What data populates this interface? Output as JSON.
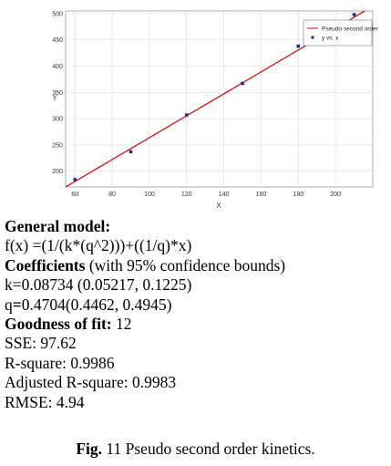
{
  "chart_data": {
    "type": "scatter",
    "title": "",
    "xlabel": "X",
    "ylabel": "Y",
    "xlim": [
      55,
      220
    ],
    "ylim": [
      170,
      505
    ],
    "xticks": [
      60,
      80,
      100,
      120,
      140,
      160,
      180,
      200
    ],
    "yticks": [
      200,
      250,
      300,
      350,
      400,
      450,
      500
    ],
    "grid": true,
    "legend_position": "top-right",
    "series": [
      {
        "name": "y vs. x",
        "kind": "points",
        "color": "#2b2b8a",
        "points": [
          {
            "x": 60,
            "y": 184
          },
          {
            "x": 90,
            "y": 237
          },
          {
            "x": 120,
            "y": 307
          },
          {
            "x": 150,
            "y": 367
          },
          {
            "x": 180,
            "y": 438
          },
          {
            "x": 210,
            "y": 498
          }
        ]
      },
      {
        "name": "Pseudo second order",
        "kind": "line",
        "color": "#e00000",
        "points": [
          {
            "x": 55,
            "y": 170
          },
          {
            "x": 220,
            "y": 514
          }
        ]
      }
    ]
  },
  "text": {
    "general_model_label": "General model:",
    "formula": "f(x) =(1/(k*(q^2)))+((1/q)*x)",
    "coefficients_label": "Coefficients",
    "coefficients_note": " (with 95% confidence bounds)",
    "k_line": "k=0.08734 (0.05217, 0.1225)",
    "q_prefix": "q",
    "q_eq": "=",
    "q_value": "0.4704(0.4462, 0.4945)",
    "goodness_label": "Goodness of fit:",
    "goodness_value": " 12",
    "sse": "SSE: 97.62",
    "rsquare": "R-square: 0.9986",
    "adj_rsquare": "Adjusted R-square: 0.9983",
    "rmse": "RMSE: 4.94"
  },
  "caption": {
    "label": "Fig.",
    "number": " 11",
    "text": " Pseudo second order kinetics."
  }
}
